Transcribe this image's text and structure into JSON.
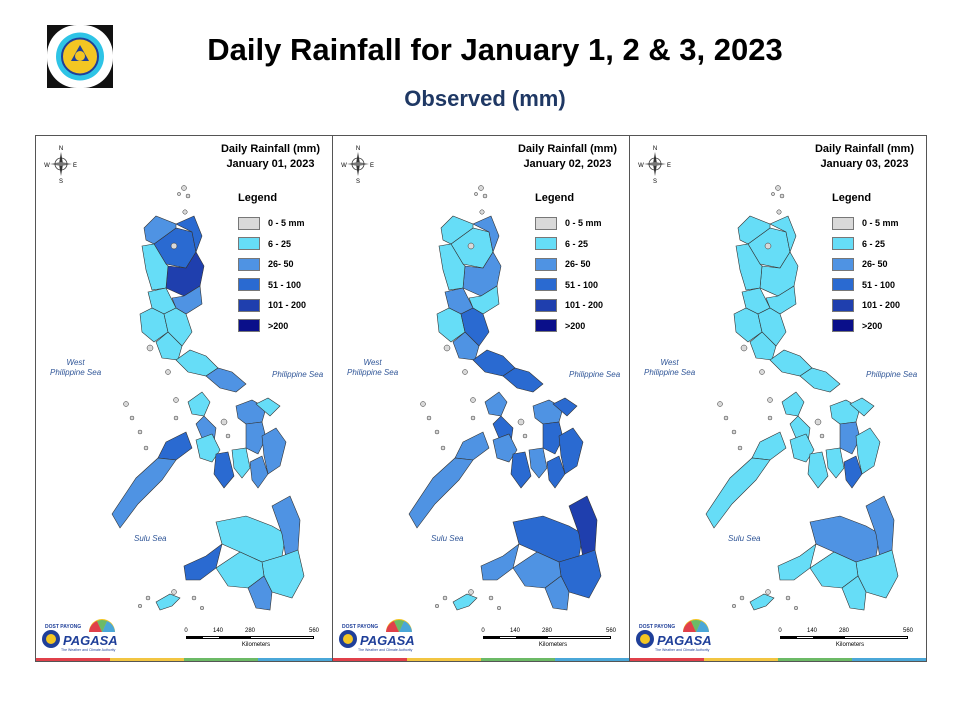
{
  "header": {
    "title": "Daily Rainfall for January 1, 2 & 3, 2023",
    "subtitle": "Observed (mm)"
  },
  "panels": [
    {
      "title_line1": "Daily Rainfall (mm)",
      "title_line2": "January 01, 2023",
      "region_classes": [
        3,
        3,
        4,
        2,
        2,
        1,
        1,
        1,
        1,
        1,
        1,
        2,
        1,
        2,
        2,
        1,
        2,
        2,
        1,
        1,
        3,
        2,
        3,
        2,
        1,
        2,
        1,
        1,
        3,
        2,
        1
      ]
    },
    {
      "title_line1": "Daily Rainfall (mm)",
      "title_line2": "January 02, 2023",
      "region_classes": [
        1,
        2,
        2,
        1,
        1,
        1,
        2,
        1,
        3,
        2,
        3,
        3,
        2,
        3,
        2,
        3,
        3,
        3,
        2,
        2,
        3,
        3,
        2,
        2,
        3,
        4,
        3,
        2,
        2,
        2,
        1
      ]
    },
    {
      "title_line1": "Daily Rainfall (mm)",
      "title_line2": "January 03, 2023",
      "region_classes": [
        1,
        1,
        1,
        1,
        1,
        1,
        1,
        1,
        1,
        1,
        1,
        1,
        1,
        1,
        1,
        1,
        2,
        1,
        1,
        1,
        1,
        3,
        1,
        1,
        2,
        2,
        1,
        1,
        1,
        1,
        1
      ]
    }
  ],
  "legend": {
    "title": "Legend",
    "items": [
      {
        "label": "0 - 5 mm",
        "color": "#d9d9d9"
      },
      {
        "label": "6 - 25",
        "color": "#66ddf7"
      },
      {
        "label": "26- 50",
        "color": "#4f93e3"
      },
      {
        "label": "51 - 100",
        "color": "#2a6ad1"
      },
      {
        "label": "101 - 200",
        "color": "#1f3fae"
      },
      {
        "label": ">200",
        "color": "#0a0f8a"
      }
    ]
  },
  "seas": {
    "west_line1": "West",
    "west_line2": "Philippine Sea",
    "east": "Philippine Sea",
    "sulu": "Sulu Sea"
  },
  "compass": {
    "n": "N",
    "s": "S",
    "e": "E",
    "w": "W"
  },
  "scale": {
    "ticks": [
      "0",
      "140",
      "280",
      "560"
    ],
    "unit": "Kilometers"
  },
  "brand": {
    "top": "DOST PAYONG",
    "word": "PAGASA",
    "tagline": "The Weather and Climate Authority"
  },
  "stripe_colors": [
    "#e0404a",
    "#f2c541",
    "#6cba66",
    "#4aa7d8"
  ],
  "base_land_color": "#d9d9d9"
}
